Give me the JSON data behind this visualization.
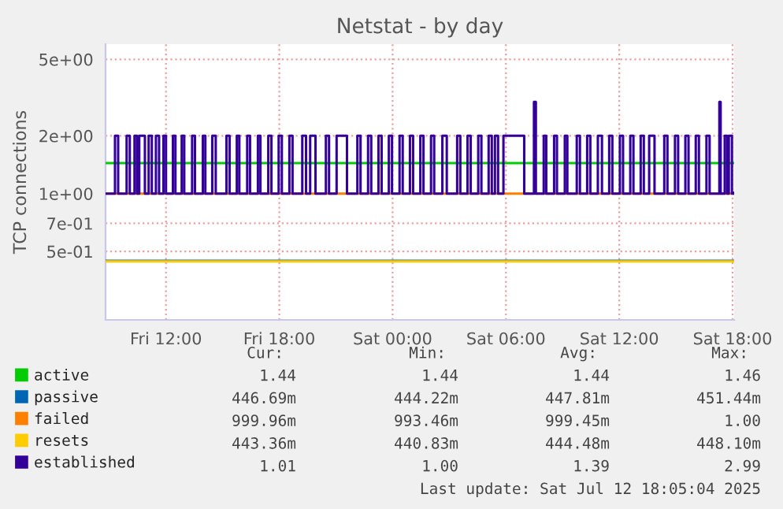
{
  "chart_data": {
    "type": "line",
    "title": "Netstat - by day",
    "ylabel": "TCP connections",
    "log": "y",
    "ylim": [
      0.22,
      6
    ],
    "yticks": [
      {
        "value": 0.5,
        "label": "5e-01"
      },
      {
        "value": 0.7,
        "label": "7e-01"
      },
      {
        "value": 1,
        "label": "1e+00"
      },
      {
        "value": 2,
        "label": "2e+00"
      },
      {
        "value": 5,
        "label": "5e+00"
      }
    ],
    "xlim": [
      "2025-07-11T08:48",
      "2025-07-12T18:05"
    ],
    "xticks": [
      {
        "value": "2025-07-11T12:00",
        "label": "Fri 12:00"
      },
      {
        "value": "2025-07-11T18:00",
        "label": "Fri 18:00"
      },
      {
        "value": "2025-07-12T00:00",
        "label": "Sat 00:00"
      },
      {
        "value": "2025-07-12T06:00",
        "label": "Sat 06:00"
      },
      {
        "value": "2025-07-12T12:00",
        "label": "Sat 12:00"
      },
      {
        "value": "2025-07-12T18:00",
        "label": "Sat 18:00"
      }
    ],
    "grid": true,
    "legend": "bottom left",
    "series": [
      {
        "name": "active",
        "color": "#00cc00",
        "x": [
          "2025-07-11T08:48",
          "2025-07-12T18:04"
        ],
        "values": [
          1.44,
          1.44
        ]
      },
      {
        "name": "passive",
        "color": "#0066b3",
        "x": [
          "2025-07-11T08:48",
          "2025-07-12T18:04"
        ],
        "values": [
          0.447,
          0.447
        ]
      },
      {
        "name": "failed",
        "color": "#ff8000",
        "x": [
          "2025-07-11T08:48",
          "2025-07-12T18:04"
        ],
        "values": [
          1.0,
          1.0
        ]
      },
      {
        "name": "resets",
        "color": "#ffcc00",
        "x": [
          "2025-07-11T08:48",
          "2025-07-12T18:04"
        ],
        "values": [
          0.444,
          0.444
        ]
      },
      {
        "name": "established",
        "color": "#330099",
        "type": "step",
        "x": [
          "2025-07-11T08:48",
          "2025-07-11T09:18",
          "2025-07-11T09:28",
          "2025-07-11T09:55",
          "2025-07-11T10:05",
          "2025-07-11T10:20",
          "2025-07-11T10:28",
          "2025-07-11T10:35",
          "2025-07-11T10:53",
          "2025-07-11T11:05",
          "2025-07-11T11:15",
          "2025-07-11T11:28",
          "2025-07-11T11:38",
          "2025-07-11T11:52",
          "2025-07-11T12:00",
          "2025-07-11T12:22",
          "2025-07-11T12:30",
          "2025-07-11T12:50",
          "2025-07-11T12:58",
          "2025-07-11T13:23",
          "2025-07-11T13:32",
          "2025-07-11T13:57",
          "2025-07-11T14:05",
          "2025-07-11T14:27",
          "2025-07-11T14:38",
          "2025-07-11T15:12",
          "2025-07-11T15:22",
          "2025-07-11T15:45",
          "2025-07-11T15:53",
          "2025-07-11T16:18",
          "2025-07-11T16:27",
          "2025-07-11T16:52",
          "2025-07-11T17:00",
          "2025-07-11T17:25",
          "2025-07-11T17:35",
          "2025-07-11T17:58",
          "2025-07-11T18:08",
          "2025-07-11T18:32",
          "2025-07-11T18:42",
          "2025-07-11T19:13",
          "2025-07-11T19:25",
          "2025-07-11T19:38",
          "2025-07-11T19:55",
          "2025-07-11T20:28",
          "2025-07-11T20:38",
          "2025-07-11T21:02",
          "2025-07-11T21:35",
          "2025-07-11T22:08",
          "2025-07-11T22:18",
          "2025-07-11T22:42",
          "2025-07-11T22:52",
          "2025-07-11T23:15",
          "2025-07-11T23:25",
          "2025-07-11T23:48",
          "2025-07-11T23:58",
          "2025-07-12T00:22",
          "2025-07-12T00:32",
          "2025-07-12T00:55",
          "2025-07-12T01:05",
          "2025-07-12T01:28",
          "2025-07-12T01:38",
          "2025-07-12T02:02",
          "2025-07-12T02:12",
          "2025-07-12T02:38",
          "2025-07-12T02:52",
          "2025-07-12T03:25",
          "2025-07-12T03:35",
          "2025-07-12T03:58",
          "2025-07-12T04:08",
          "2025-07-12T04:32",
          "2025-07-12T04:42",
          "2025-07-12T05:05",
          "2025-07-12T05:15",
          "2025-07-12T05:25",
          "2025-07-12T05:35",
          "2025-07-12T05:52",
          "2025-07-12T06:58",
          "2025-07-12T07:29",
          "2025-07-12T07:35",
          "2025-07-12T08:00",
          "2025-07-12T08:08",
          "2025-07-12T08:33",
          "2025-07-12T08:42",
          "2025-07-12T09:07",
          "2025-07-12T09:15",
          "2025-07-12T09:45",
          "2025-07-12T09:55",
          "2025-07-12T10:18",
          "2025-07-12T10:28",
          "2025-07-12T10:52",
          "2025-07-12T11:05",
          "2025-07-12T11:28",
          "2025-07-12T11:38",
          "2025-07-12T12:02",
          "2025-07-12T12:12",
          "2025-07-12T12:35",
          "2025-07-12T12:45",
          "2025-07-12T13:08",
          "2025-07-12T13:18",
          "2025-07-12T13:35",
          "2025-07-12T13:52",
          "2025-07-12T14:23",
          "2025-07-12T14:33",
          "2025-07-12T14:57",
          "2025-07-12T15:07",
          "2025-07-12T15:30",
          "2025-07-12T15:40",
          "2025-07-12T16:03",
          "2025-07-12T16:13",
          "2025-07-12T16:37",
          "2025-07-12T16:47",
          "2025-07-12T17:18",
          "2025-07-12T17:22",
          "2025-07-12T17:35",
          "2025-07-12T17:43",
          "2025-07-12T17:48",
          "2025-07-12T17:58",
          "2025-07-12T18:04"
        ],
        "values": [
          1,
          2,
          1,
          2,
          1,
          2,
          1,
          2,
          1,
          2,
          1,
          2,
          1,
          2,
          1,
          2,
          1,
          2,
          1,
          2,
          1,
          2,
          1,
          2,
          1,
          2,
          1,
          2,
          1,
          2,
          1,
          2,
          1,
          2,
          1,
          2,
          1,
          2,
          1,
          2,
          1,
          2,
          1,
          2,
          1,
          2,
          1,
          2,
          1,
          2,
          1,
          2,
          1,
          2,
          1,
          2,
          1,
          2,
          1,
          2,
          1,
          2,
          1,
          2,
          1,
          2,
          1,
          2,
          1,
          2,
          1,
          2,
          1,
          2,
          1,
          2,
          1,
          3,
          1,
          2,
          1,
          2,
          1,
          2,
          1,
          2,
          1,
          2,
          1,
          2,
          1,
          2,
          1,
          2,
          1,
          2,
          1,
          2,
          1,
          2,
          1,
          2,
          1,
          2,
          1,
          2,
          1,
          2,
          1,
          2,
          1,
          3,
          1,
          2,
          1,
          2,
          1,
          1.01
        ]
      }
    ],
    "annotations": [
      "Cur:",
      "Min:",
      "Avg:",
      "Max:",
      "1.44",
      "1.44",
      "1.44",
      "1.46",
      "446.69m",
      "444.22m",
      "447.81m",
      "451.44m",
      "999.96m",
      "993.46m",
      "999.45m",
      "1.00",
      "443.36m",
      "440.83m",
      "444.48m",
      "448.10m",
      "1.01",
      "1.00",
      "1.39",
      "2.99",
      "Last update: Sat Jul 12 18:05:04 2025"
    ]
  }
}
